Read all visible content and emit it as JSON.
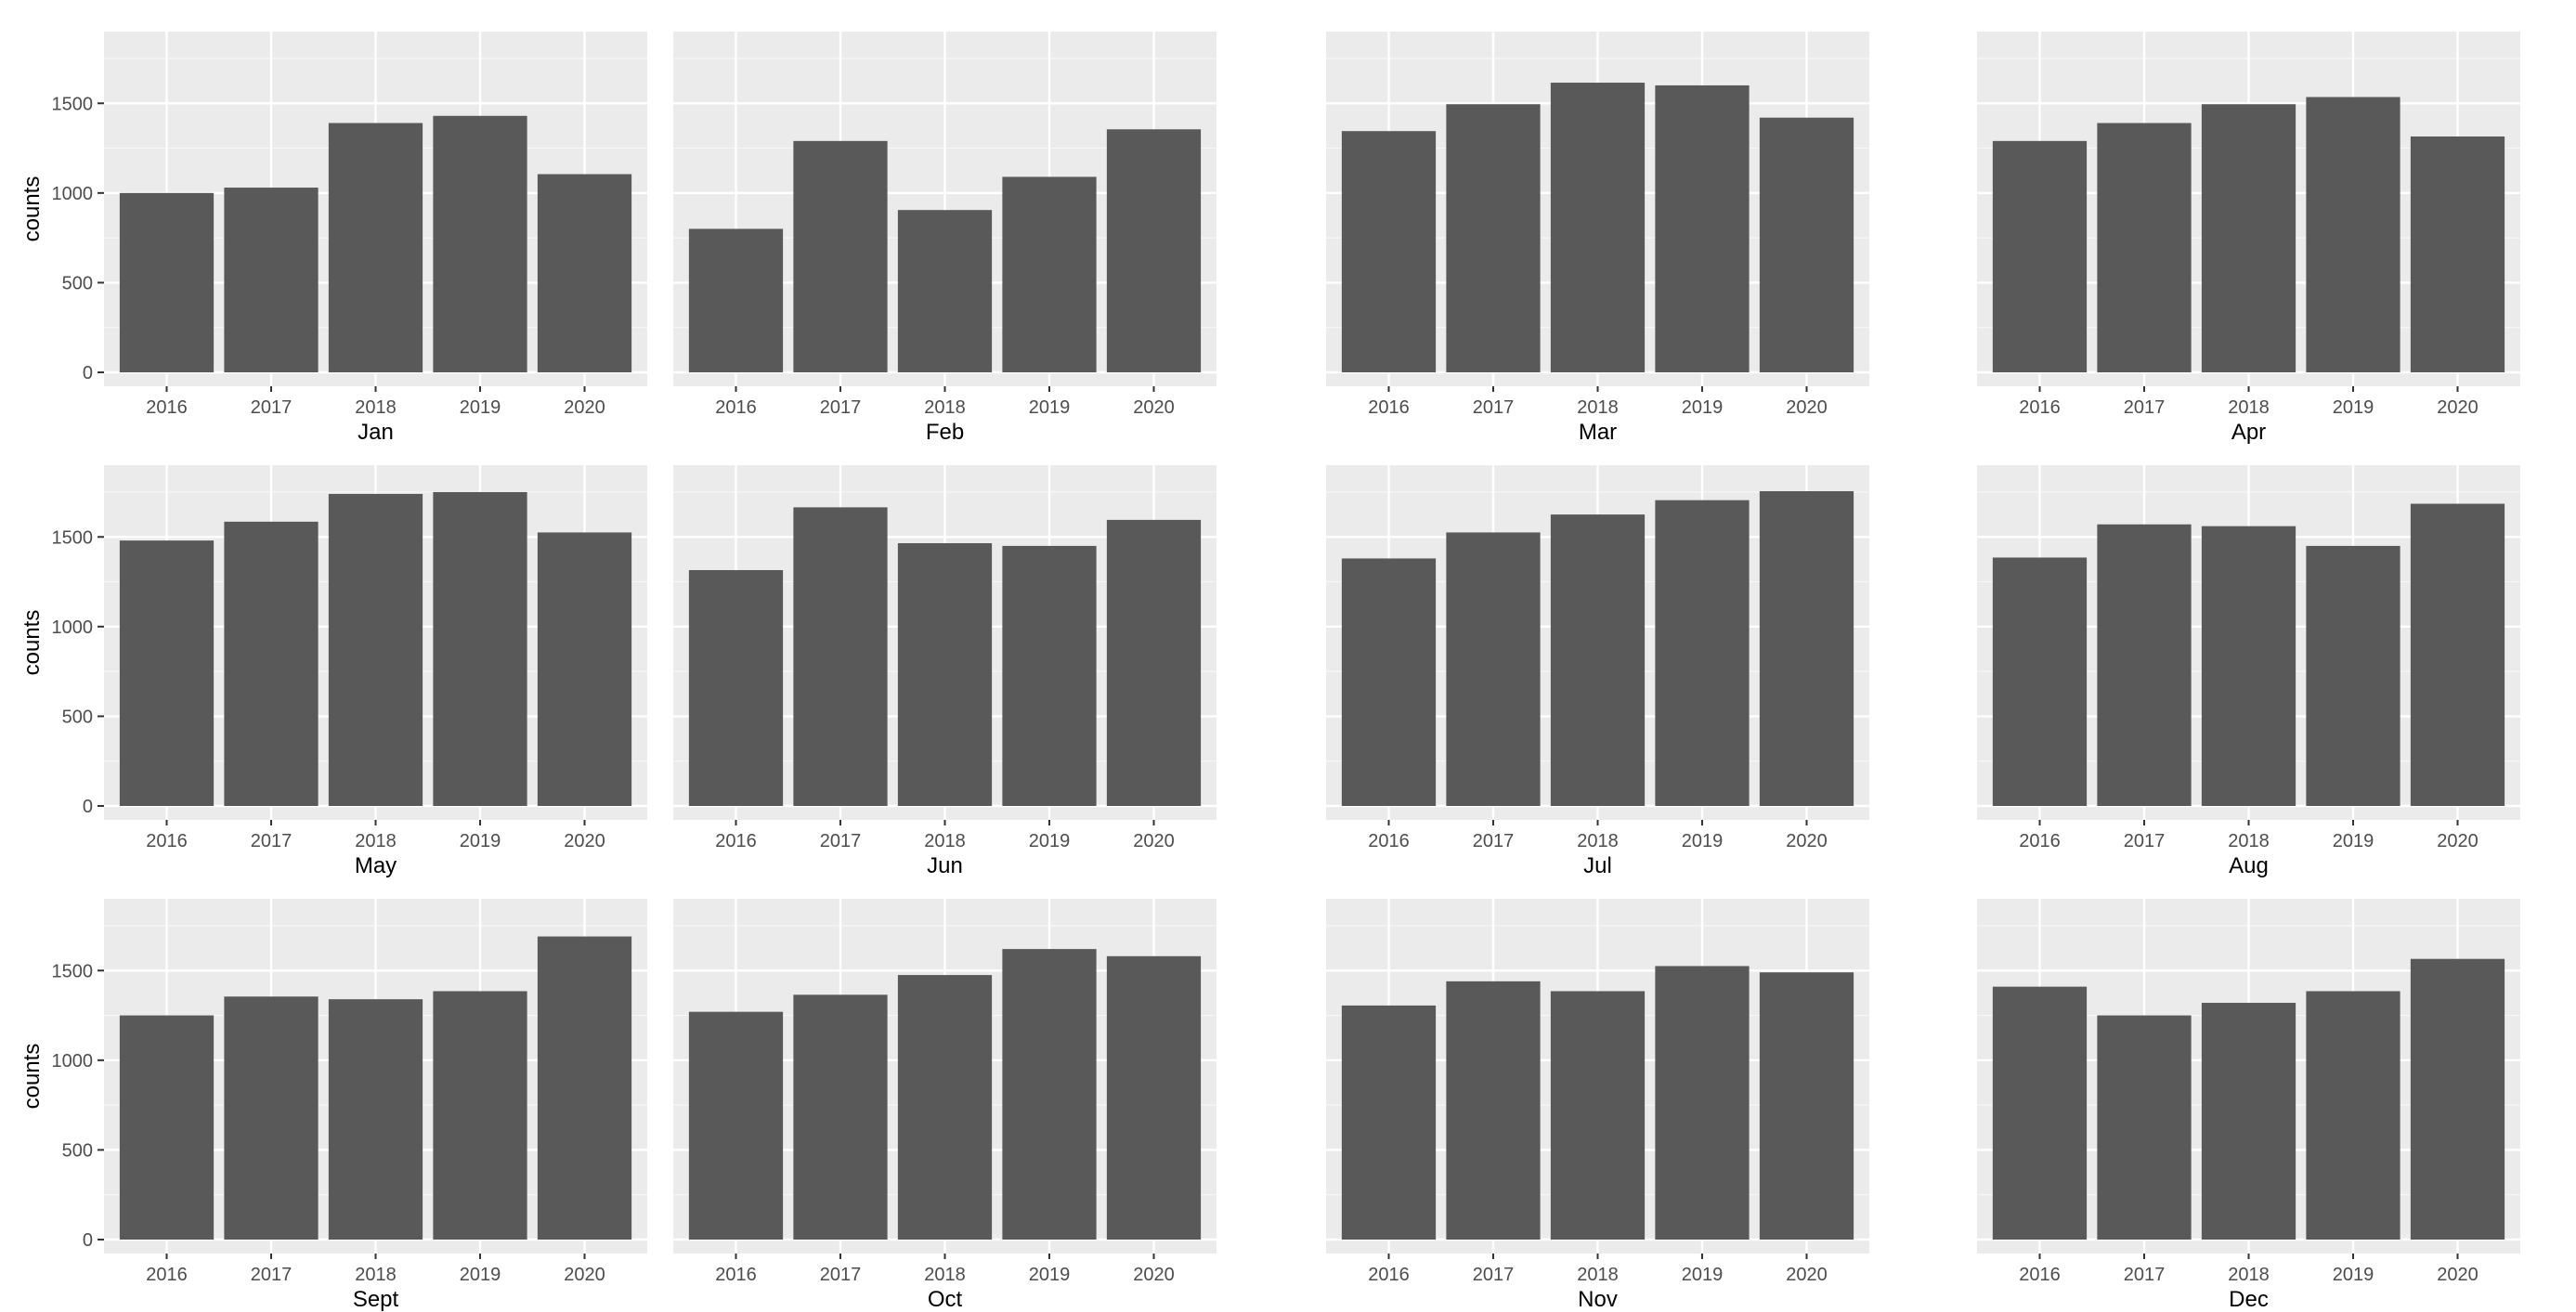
{
  "chart_data": {
    "type": "bar",
    "layout": "facet-grid 3x4",
    "ylabel": "counts",
    "ylim": [
      0,
      1900
    ],
    "yticks": [
      0,
      500,
      1000,
      1500
    ],
    "grid": true,
    "colors": {
      "panel": "#ebebeb",
      "bar": "#595959",
      "grid": "#ffffff"
    },
    "panels": [
      {
        "label": "Jan",
        "categories": [
          "2016",
          "2017",
          "2018",
          "2019",
          "2020"
        ],
        "values": [
          1000,
          1030,
          1390,
          1430,
          1105
        ]
      },
      {
        "label": "Feb",
        "categories": [
          "2016",
          "2017",
          "2018",
          "2019",
          "2020"
        ],
        "values": [
          800,
          1290,
          905,
          1090,
          1355
        ]
      },
      {
        "label": "Mar",
        "categories": [
          "2016",
          "2017",
          "2018",
          "2019",
          "2020"
        ],
        "values": [
          1345,
          1495,
          1615,
          1600,
          1420
        ]
      },
      {
        "label": "Apr",
        "categories": [
          "2016",
          "2017",
          "2018",
          "2019",
          "2020"
        ],
        "values": [
          1290,
          1390,
          1495,
          1535,
          1315
        ]
      },
      {
        "label": "May",
        "categories": [
          "2016",
          "2017",
          "2018",
          "2019",
          "2020"
        ],
        "values": [
          1480,
          1585,
          1740,
          1750,
          1525
        ]
      },
      {
        "label": "Jun",
        "categories": [
          "2016",
          "2017",
          "2018",
          "2019",
          "2020"
        ],
        "values": [
          1315,
          1665,
          1465,
          1450,
          1595
        ]
      },
      {
        "label": "Jul",
        "categories": [
          "2016",
          "2017",
          "2018",
          "2019",
          "2020"
        ],
        "values": [
          1380,
          1525,
          1625,
          1705,
          1755
        ]
      },
      {
        "label": "Aug",
        "categories": [
          "2016",
          "2017",
          "2018",
          "2019",
          "2020"
        ],
        "values": [
          1385,
          1570,
          1560,
          1450,
          1685
        ]
      },
      {
        "label": "Sept",
        "categories": [
          "2016",
          "2017",
          "2018",
          "2019",
          "2020"
        ],
        "values": [
          1250,
          1355,
          1340,
          1385,
          1690
        ]
      },
      {
        "label": "Oct",
        "categories": [
          "2016",
          "2017",
          "2018",
          "2019",
          "2020"
        ],
        "values": [
          1270,
          1365,
          1475,
          1620,
          1580
        ]
      },
      {
        "label": "Nov",
        "categories": [
          "2016",
          "2017",
          "2018",
          "2019",
          "2020"
        ],
        "values": [
          1305,
          1440,
          1385,
          1525,
          1490
        ]
      },
      {
        "label": "Dec",
        "categories": [
          "2016",
          "2017",
          "2018",
          "2019",
          "2020"
        ],
        "values": [
          1410,
          1250,
          1320,
          1385,
          1565
        ]
      }
    ]
  }
}
